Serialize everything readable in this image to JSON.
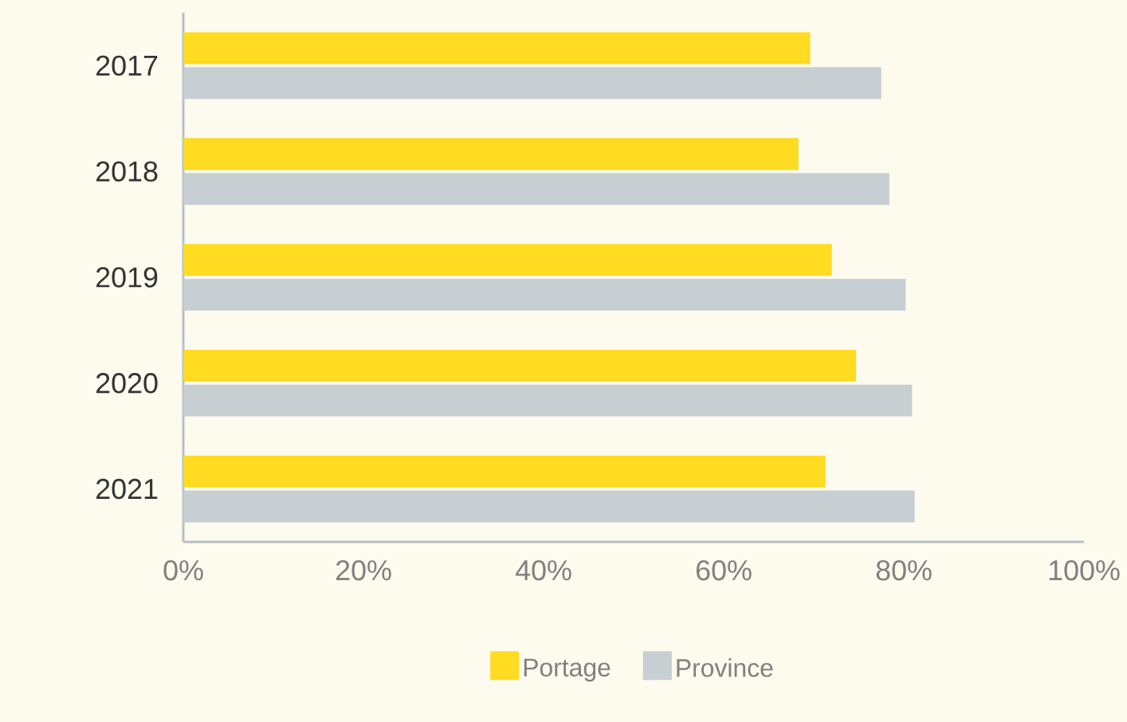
{
  "chart_data": {
    "type": "bar",
    "orientation": "horizontal",
    "categories": [
      "2017",
      "2018",
      "2019",
      "2020",
      "2021"
    ],
    "series": [
      {
        "name": "Portage",
        "color": "#ffdb21",
        "values": [
          69.6,
          68.3,
          72.0,
          74.7,
          71.3
        ]
      },
      {
        "name": "Province",
        "color": "#c8cfd2",
        "values": [
          77.5,
          78.4,
          80.2,
          80.9,
          81.2
        ]
      }
    ],
    "xlim": [
      0,
      100
    ],
    "xticks": [
      {
        "value": 0,
        "label": "0%"
      },
      {
        "value": 20,
        "label": "20%"
      },
      {
        "value": 40,
        "label": "40%"
      },
      {
        "value": 60,
        "label": "60%"
      },
      {
        "value": 80,
        "label": "80%"
      },
      {
        "value": 100,
        "label": "100%"
      }
    ],
    "legend": "bottom"
  }
}
